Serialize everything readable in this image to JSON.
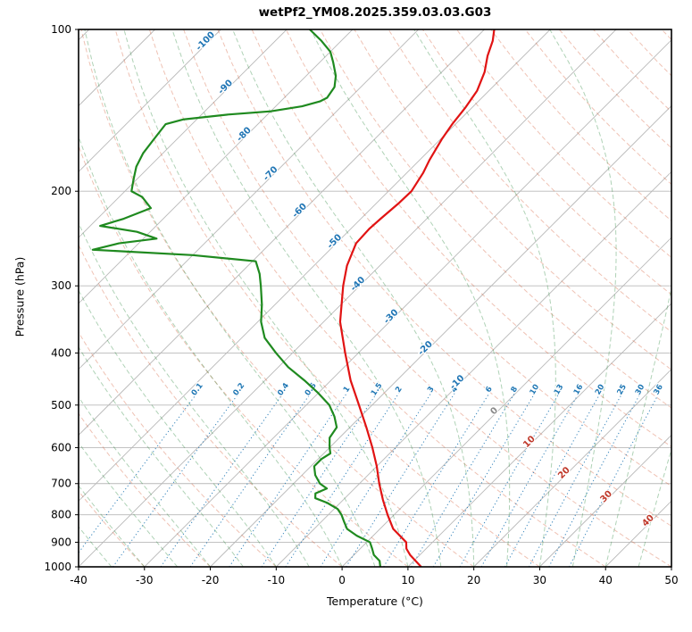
{
  "title": "wetPf2_YM08.2025.359.03.03.G03",
  "axes": {
    "xlabel": "Temperature (°C)",
    "ylabel": "Pressure (hPa)",
    "x_ticks": [
      -40,
      -30,
      -20,
      -10,
      0,
      10,
      20,
      30,
      40,
      50
    ],
    "y_ticks": [
      100,
      200,
      300,
      400,
      500,
      600,
      700,
      800,
      900,
      1000
    ]
  },
  "chart_data": {
    "type": "line",
    "variant": "skew-t-log-p",
    "title": "wetPf2_YM08.2025.359.03.03.G03",
    "xlabel": "Temperature (°C)",
    "ylabel": "Pressure (hPa)",
    "xlim_bottom": [
      -40,
      50
    ],
    "pressure_lim": [
      1000,
      100
    ],
    "skew_degrees": 45,
    "grid": true,
    "series": [
      {
        "name": "temperature",
        "color": "#e11313",
        "style": "solid",
        "units": {
          "pressure": "hPa",
          "temperature": "degC"
        },
        "points": [
          [
            1000,
            12
          ],
          [
            950,
            8.5
          ],
          [
            925,
            7
          ],
          [
            900,
            6
          ],
          [
            850,
            2
          ],
          [
            800,
            -1
          ],
          [
            750,
            -4
          ],
          [
            700,
            -7
          ],
          [
            650,
            -10
          ],
          [
            600,
            -13.5
          ],
          [
            550,
            -17.5
          ],
          [
            500,
            -22
          ],
          [
            450,
            -27
          ],
          [
            400,
            -32
          ],
          [
            350,
            -37.5
          ],
          [
            300,
            -42.5
          ],
          [
            275,
            -45
          ],
          [
            250,
            -47
          ],
          [
            235,
            -47.2
          ],
          [
            225,
            -47
          ],
          [
            210,
            -46.6
          ],
          [
            200,
            -46.5
          ],
          [
            185,
            -47.5
          ],
          [
            175,
            -48.5
          ],
          [
            160,
            -49.8
          ],
          [
            150,
            -50.5
          ],
          [
            140,
            -51
          ],
          [
            130,
            -51.8
          ],
          [
            120,
            -53.5
          ],
          [
            112,
            -55.5
          ],
          [
            105,
            -57
          ],
          [
            100,
            -58.5
          ]
        ]
      },
      {
        "name": "dewpoint",
        "color": "#1f8a1f",
        "style": "solid",
        "units": {
          "pressure": "hPa",
          "temperature": "degC"
        },
        "points": [
          [
            1000,
            5.8
          ],
          [
            975,
            4.8
          ],
          [
            950,
            3
          ],
          [
            925,
            1.8
          ],
          [
            900,
            0.5
          ],
          [
            875,
            -2.5
          ],
          [
            850,
            -5
          ],
          [
            825,
            -6.5
          ],
          [
            800,
            -8
          ],
          [
            780,
            -9.5
          ],
          [
            760,
            -12
          ],
          [
            745,
            -14.5
          ],
          [
            730,
            -15.2
          ],
          [
            715,
            -14.2
          ],
          [
            700,
            -16
          ],
          [
            675,
            -18
          ],
          [
            650,
            -19.5
          ],
          [
            630,
            -19.5
          ],
          [
            615,
            -19
          ],
          [
            600,
            -20
          ],
          [
            575,
            -21.5
          ],
          [
            550,
            -22
          ],
          [
            525,
            -24
          ],
          [
            500,
            -26.5
          ],
          [
            475,
            -30
          ],
          [
            450,
            -34
          ],
          [
            425,
            -38.5
          ],
          [
            400,
            -42.5
          ],
          [
            375,
            -46.5
          ],
          [
            350,
            -49.5
          ],
          [
            325,
            -52
          ],
          [
            300,
            -55
          ],
          [
            285,
            -57
          ],
          [
            270,
            -59.5
          ],
          [
            263,
            -70
          ],
          [
            257,
            -86
          ],
          [
            250,
            -83
          ],
          [
            245,
            -78
          ],
          [
            238,
            -82
          ],
          [
            232,
            -88.5
          ],
          [
            225,
            -86
          ],
          [
            215,
            -83.5
          ],
          [
            205,
            -86.5
          ],
          [
            200,
            -89
          ],
          [
            190,
            -90.5
          ],
          [
            180,
            -92
          ],
          [
            170,
            -93
          ],
          [
            160,
            -93.5
          ],
          [
            150,
            -94
          ],
          [
            147,
            -92
          ],
          [
            144,
            -86
          ],
          [
            142,
            -80
          ],
          [
            139,
            -76
          ],
          [
            136,
            -74
          ],
          [
            134,
            -73.5
          ],
          [
            128,
            -74
          ],
          [
            122,
            -75.5
          ],
          [
            115,
            -78
          ],
          [
            110,
            -80
          ],
          [
            105,
            -83
          ],
          [
            100,
            -86.5
          ]
        ]
      }
    ],
    "background_lines": {
      "isobars": {
        "values": [
          100,
          200,
          300,
          400,
          500,
          600,
          700,
          800,
          900,
          1000
        ],
        "color": "#b9b9b9"
      },
      "isotherms": {
        "min": -130,
        "max": 50,
        "step": 10,
        "color": "#b9b9b9",
        "labels": [
          {
            "t": -100,
            "p": 106
          },
          {
            "t": -90,
            "p": 129
          },
          {
            "t": -80,
            "p": 158
          },
          {
            "t": -70,
            "p": 187
          },
          {
            "t": -60,
            "p": 219
          },
          {
            "t": -50,
            "p": 250
          },
          {
            "t": -40,
            "p": 300
          },
          {
            "t": -30,
            "p": 345
          },
          {
            "t": -20,
            "p": 395
          },
          {
            "t": -10,
            "p": 457
          },
          {
            "t": 0,
            "p": 517
          },
          {
            "t": 10,
            "p": 590
          },
          {
            "t": 20,
            "p": 674
          },
          {
            "t": 30,
            "p": 746
          },
          {
            "t": 40,
            "p": 827
          }
        ],
        "label_colors": {
          "negative": "#2176b5",
          "zero": "#8a8a8a",
          "positive": "#c0392b"
        }
      },
      "dry_adiabats": {
        "theta_start": -30,
        "theta_end": 200,
        "step": 10,
        "color": "rgba(213,94,59,0.38)"
      },
      "moist_adiabats": {
        "t1000_start": -40,
        "t1000_end": 45,
        "step": 5,
        "color": "rgba(44,138,62,0.38)"
      },
      "mixing_ratio": {
        "values": [
          0.1,
          0.2,
          0.4,
          0.6,
          1,
          1.5,
          2,
          3,
          4,
          6,
          8,
          10,
          13,
          16,
          20,
          25,
          30,
          36
        ],
        "units": "g/kg",
        "color": "#1f77b4",
        "label_pressure": 470,
        "p_range": [
          1000,
          470
        ]
      }
    }
  }
}
